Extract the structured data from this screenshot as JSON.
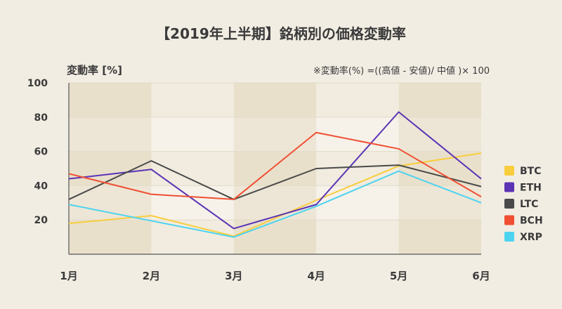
{
  "chart_data": {
    "type": "line",
    "title": "【2019年上半期】銘柄別の価格変動率",
    "ylabel": "変動率 [%]",
    "note": "※変動率(%) =((高値 - 安値)/ 中値 )× 100",
    "categories": [
      "1月",
      "2月",
      "3月",
      "4月",
      "5月",
      "6月"
    ],
    "yticks": [
      20,
      40,
      60,
      80,
      100
    ],
    "ylim": [
      0,
      100
    ],
    "legend_position": "right",
    "series": [
      {
        "name": "BTC",
        "color": "#f8cd3e",
        "values": [
          18,
          22.5,
          10.5,
          31.5,
          51.5,
          59
        ]
      },
      {
        "name": "ETH",
        "color": "#5b33b5",
        "values": [
          44,
          49.5,
          15,
          29,
          83,
          44
        ]
      },
      {
        "name": "LTC",
        "color": "#4a4a4a",
        "values": [
          32,
          54.5,
          32,
          50,
          52,
          39.5
        ]
      },
      {
        "name": "BCH",
        "color": "#f04f32",
        "values": [
          47,
          35,
          32,
          71,
          61.5,
          33.5
        ]
      },
      {
        "name": "XRP",
        "color": "#4dd3f0",
        "values": [
          29,
          19.5,
          10,
          28,
          48.5,
          30
        ]
      }
    ]
  }
}
